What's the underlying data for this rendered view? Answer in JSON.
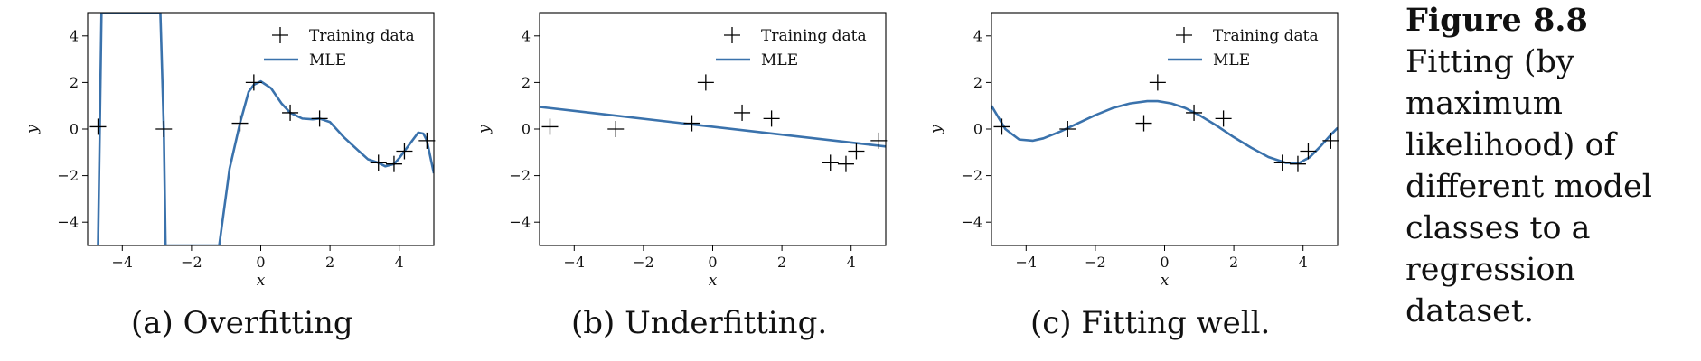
{
  "figure_caption": {
    "label": "Figure 8.8",
    "text": "Fitting (by maximum likelihood) of different model classes to a regression dataset."
  },
  "chart_data": [
    {
      "type": "line",
      "caption": "(a) Overfitting",
      "xlabel": "x",
      "ylabel": "y",
      "xlim": [
        -5,
        5
      ],
      "ylim": [
        -5,
        5
      ],
      "xticks": [
        -4,
        -2,
        0,
        2,
        4
      ],
      "yticks": [
        -4,
        -2,
        0,
        2,
        4
      ],
      "legend": {
        "placement": "top-right",
        "entries": [
          "Training data",
          "MLE"
        ]
      },
      "training_data": {
        "name": "Training data",
        "x": [
          -4.7,
          -2.8,
          -0.6,
          -0.2,
          0.85,
          1.7,
          3.4,
          3.85,
          4.15,
          4.8
        ],
        "y": [
          0.1,
          0.0,
          0.25,
          2.0,
          0.7,
          0.45,
          -1.45,
          -1.5,
          -0.95,
          -0.5
        ]
      },
      "mle": {
        "name": "MLE",
        "x": [
          -4.7,
          -4.6,
          -2.9,
          -2.8,
          -2.75,
          -1.2,
          -0.9,
          -0.6,
          -0.35,
          -0.2,
          0.0,
          0.3,
          0.6,
          0.85,
          1.2,
          1.5,
          1.7,
          2.0,
          2.4,
          2.8,
          3.1,
          3.4,
          3.6,
          3.85,
          4.0,
          4.15,
          4.35,
          4.55,
          4.7,
          4.8,
          4.9,
          5.0
        ],
        "y": [
          -5.0,
          5.0,
          5.0,
          0.0,
          -5.0,
          -5.0,
          -1.7,
          0.25,
          1.6,
          1.9,
          2.05,
          1.75,
          1.1,
          0.7,
          0.45,
          0.42,
          0.45,
          0.3,
          -0.35,
          -0.9,
          -1.3,
          -1.45,
          -1.6,
          -1.5,
          -1.25,
          -0.95,
          -0.55,
          -0.15,
          -0.2,
          -0.5,
          -1.2,
          -1.9
        ]
      }
    },
    {
      "type": "line",
      "caption": "(b) Underfitting.",
      "xlabel": "x",
      "ylabel": "y",
      "xlim": [
        -5,
        5
      ],
      "ylim": [
        -5,
        5
      ],
      "xticks": [
        -4,
        -2,
        0,
        2,
        4
      ],
      "yticks": [
        -4,
        -2,
        0,
        2,
        4
      ],
      "legend": {
        "placement": "top-right",
        "entries": [
          "Training data",
          "MLE"
        ]
      },
      "training_data": {
        "name": "Training data",
        "x": [
          -4.7,
          -2.8,
          -0.6,
          -0.2,
          0.85,
          1.7,
          3.4,
          3.85,
          4.15,
          4.8
        ],
        "y": [
          0.1,
          0.0,
          0.25,
          2.0,
          0.7,
          0.45,
          -1.45,
          -1.5,
          -0.95,
          -0.5
        ]
      },
      "mle": {
        "name": "MLE",
        "x": [
          -5.0,
          5.0
        ],
        "y": [
          0.95,
          -0.75
        ]
      }
    },
    {
      "type": "line",
      "caption": "(c) Fitting well.",
      "xlabel": "x",
      "ylabel": "y",
      "xlim": [
        -5,
        5
      ],
      "ylim": [
        -5,
        5
      ],
      "xticks": [
        -4,
        -2,
        0,
        2,
        4
      ],
      "yticks": [
        -4,
        -2,
        0,
        2,
        4
      ],
      "legend": {
        "placement": "top-right",
        "entries": [
          "Training data",
          "MLE"
        ]
      },
      "training_data": {
        "name": "Training data",
        "x": [
          -4.7,
          -2.8,
          -0.6,
          -0.2,
          0.85,
          1.7,
          3.4,
          3.85,
          4.15,
          4.8
        ],
        "y": [
          0.1,
          0.0,
          0.25,
          2.0,
          0.7,
          0.45,
          -1.45,
          -1.5,
          -0.95,
          -0.5
        ]
      },
      "mle": {
        "name": "MLE",
        "x": [
          -5.0,
          -4.6,
          -4.2,
          -3.8,
          -3.5,
          -3.0,
          -2.5,
          -2.0,
          -1.5,
          -1.0,
          -0.5,
          -0.2,
          0.2,
          0.6,
          1.0,
          1.5,
          2.0,
          2.5,
          3.0,
          3.5,
          3.9,
          4.2,
          4.5,
          4.8,
          5.0
        ],
        "y": [
          1.0,
          0.0,
          -0.45,
          -0.5,
          -0.4,
          -0.1,
          0.25,
          0.6,
          0.9,
          1.1,
          1.2,
          1.2,
          1.1,
          0.9,
          0.6,
          0.15,
          -0.35,
          -0.8,
          -1.2,
          -1.45,
          -1.45,
          -1.2,
          -0.75,
          -0.25,
          0.05
        ]
      }
    }
  ]
}
